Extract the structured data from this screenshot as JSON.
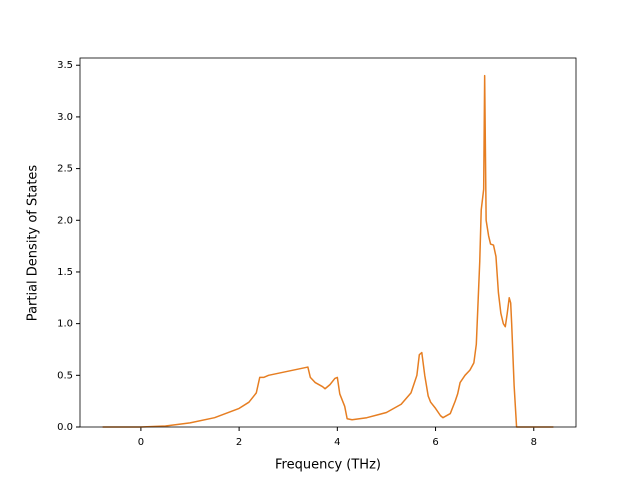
{
  "chart_data": {
    "type": "line",
    "x_label": "Frequency (THz)",
    "y_label": "Partial Density of States",
    "x": [
      -0.78,
      0,
      0.5,
      1.0,
      1.5,
      2.0,
      2.2,
      2.35,
      2.42,
      2.5,
      2.6,
      3.0,
      3.4,
      3.45,
      3.55,
      3.7,
      3.75,
      3.85,
      3.95,
      4.0,
      4.05,
      4.15,
      4.2,
      4.3,
      4.6,
      5.0,
      5.3,
      5.5,
      5.62,
      5.67,
      5.72,
      5.78,
      5.85,
      5.9,
      6.0,
      6.1,
      6.15,
      6.3,
      6.4,
      6.45,
      6.5,
      6.6,
      6.7,
      6.78,
      6.83,
      6.9,
      6.93,
      6.98,
      7.0,
      7.03,
      7.08,
      7.12,
      7.18,
      7.23,
      7.28,
      7.33,
      7.38,
      7.42,
      7.46,
      7.5,
      7.53,
      7.55,
      7.6,
      7.65,
      8.0,
      8.4
    ],
    "series": [
      {
        "color": "#e67e22",
        "values": [
          0,
          0,
          0.01,
          0.04,
          0.09,
          0.18,
          0.24,
          0.33,
          0.48,
          0.48,
          0.5,
          0.54,
          0.58,
          0.48,
          0.43,
          0.39,
          0.37,
          0.41,
          0.47,
          0.48,
          0.32,
          0.2,
          0.08,
          0.07,
          0.09,
          0.14,
          0.22,
          0.33,
          0.5,
          0.7,
          0.72,
          0.5,
          0.3,
          0.24,
          0.18,
          0.11,
          0.09,
          0.13,
          0.25,
          0.32,
          0.43,
          0.5,
          0.55,
          0.62,
          0.8,
          1.6,
          2.1,
          2.3,
          3.4,
          2.0,
          1.85,
          1.77,
          1.76,
          1.65,
          1.3,
          1.1,
          1.0,
          0.97,
          1.1,
          1.25,
          1.2,
          1.0,
          0.4,
          0,
          0,
          0
        ]
      }
    ],
    "xlim": [
      -1.24,
      8.86
    ],
    "ylim": [
      0,
      3.57
    ],
    "xticks": [
      0,
      2,
      4,
      6,
      8
    ],
    "yticks": [
      {
        "value": 0,
        "label": "0.0"
      },
      0.5,
      {
        "value": 1,
        "label": "1.0"
      },
      1.5,
      {
        "value": 2,
        "label": "2.0"
      },
      2.5,
      {
        "value": 3,
        "label": "3.0"
      },
      3.5
    ]
  }
}
